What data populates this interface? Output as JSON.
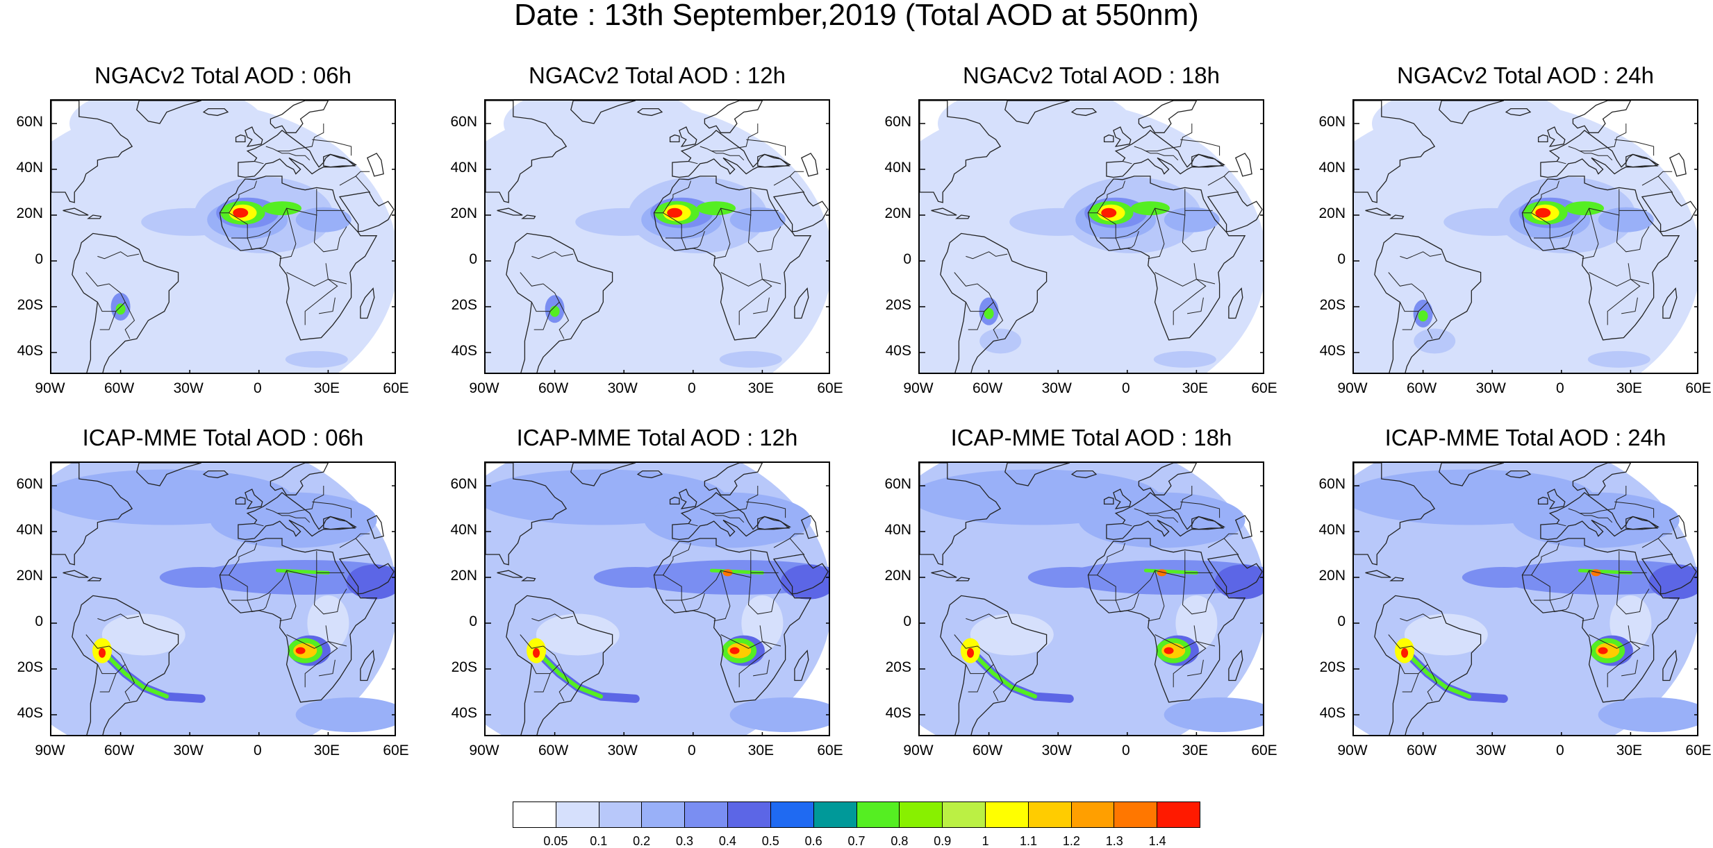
{
  "title": "Date : 13th September,2019 (Total AOD at 550nm)",
  "lat_labels": [
    "60N",
    "40N",
    "20N",
    "0",
    "20S",
    "40S"
  ],
  "lon_labels": [
    "90W",
    "60W",
    "30W",
    "0",
    "30E",
    "60E"
  ],
  "panels": [
    {
      "title": "NGACv2 Total AOD : 06h",
      "model": "NGACv2",
      "hour": "06h"
    },
    {
      "title": "NGACv2 Total AOD : 12h",
      "model": "NGACv2",
      "hour": "12h"
    },
    {
      "title": "NGACv2 Total AOD : 18h",
      "model": "NGACv2",
      "hour": "18h"
    },
    {
      "title": "NGACv2 Total AOD : 24h",
      "model": "NGACv2",
      "hour": "24h"
    },
    {
      "title": "ICAP-MME Total AOD : 06h",
      "model": "ICAP-MME",
      "hour": "06h"
    },
    {
      "title": "ICAP-MME Total AOD : 12h",
      "model": "ICAP-MME",
      "hour": "12h"
    },
    {
      "title": "ICAP-MME Total AOD : 18h",
      "model": "ICAP-MME",
      "hour": "18h"
    },
    {
      "title": "ICAP-MME Total AOD : 24h",
      "model": "ICAP-MME",
      "hour": "24h"
    }
  ],
  "colorbar": {
    "colors": [
      "#ffffff",
      "#d6e0fc",
      "#b8c8fa",
      "#99b0f8",
      "#7a8ef2",
      "#5c66e6",
      "#1f6af2",
      "#009999",
      "#55ee22",
      "#88f000",
      "#bbf044",
      "#ffff00",
      "#ffcc00",
      "#ff9f00",
      "#ff7700",
      "#ff1a00"
    ],
    "labels": [
      "0.05",
      "0.1",
      "0.2",
      "0.3",
      "0.4",
      "0.5",
      "0.6",
      "0.7",
      "0.8",
      "0.9",
      "1",
      "1.1",
      "1.2",
      "1.3",
      "1.4"
    ]
  }
}
